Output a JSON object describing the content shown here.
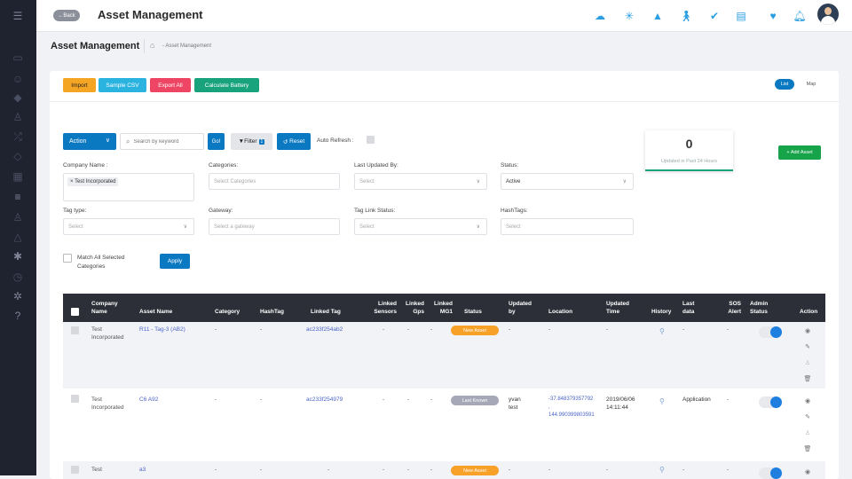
{
  "header": {
    "back_label": "Back",
    "title": "Asset Management",
    "icons": [
      "cloud-rain-icon",
      "network-icon",
      "warning-icon",
      "person-walking-icon",
      "badge-check-icon",
      "document-person-icon",
      "heart-monitor-icon",
      "bell-icon"
    ]
  },
  "page": {
    "title": "Asset Management",
    "breadcrumb": "- Asset Management"
  },
  "toolbar": {
    "import": "Import",
    "sample_csv": "Sample CSV",
    "export_all": "Export All",
    "calculate_battery": "Calculate Battery",
    "view_list": "List",
    "view_map": "Map"
  },
  "colors": {
    "import": "#f5a524",
    "sample_csv": "#2bb3e0",
    "export_all": "#ef4565",
    "calculate_battery": "#19a37c",
    "primary": "#0b78c2",
    "new_asset": "#f7a128",
    "last_known": "#a6a8b8"
  },
  "filters": {
    "action": "Action",
    "search_placeholder": "Search by keyword",
    "go": "Go!",
    "filter": "Filter",
    "filter_count": "1",
    "reset": "Reset",
    "auto_refresh": "Auto Refresh :",
    "company_label": "Company Name :",
    "company_chip": "× Test Incorporated",
    "categories_label": "Categories:",
    "categories_placeholder": "Select Categories",
    "last_updated_label": "Last Updated By:",
    "last_updated_value": "Select",
    "status_label": "Status:",
    "status_value": "Active",
    "tag_type_label": "Tag type:",
    "tag_type_value": "Select",
    "gateway_label": "Gateway:",
    "gateway_placeholder": "Select a gateway",
    "tag_link_label": "Tag Link Status:",
    "tag_link_value": "Select",
    "hashtags_label": "HashTags:",
    "hashtags_placeholder": "Select",
    "match_all_1": "Match All Selected",
    "match_all_2": "Categories",
    "apply": "Apply"
  },
  "stat": {
    "count": "0",
    "label": "Updated in Past 24 Hours"
  },
  "add_asset": "+ Add Asset",
  "table": {
    "headers": {
      "company_1": "Company",
      "company_2": "Name",
      "asset_name": "Asset Name",
      "category": "Category",
      "hashtag": "HashTag",
      "linked_tag": "Linked Tag",
      "linked_sensors_1": "Linked",
      "linked_sensors_2": "Sensors",
      "linked_gps_1": "Linked",
      "linked_gps_2": "Gps",
      "linked_mg1_1": "Linked",
      "linked_mg1_2": "MG1",
      "status": "Status",
      "updated_by_1": "Updated",
      "updated_by_2": "by",
      "location": "Location",
      "updated_time_1": "Updated",
      "updated_time_2": "Time",
      "history": "History",
      "last_data_1": "Last",
      "last_data_2": "data",
      "sos_1": "SOS",
      "sos_2": "Alert",
      "admin_1": "Admin",
      "admin_2": "Status",
      "action": "Action"
    },
    "rows": [
      {
        "company_1": "Test",
        "company_2": "Incorporated",
        "asset_name": "R11 - Tag-3 (AB2)",
        "category": "-",
        "hashtag": "-",
        "linked_tag": "ac233f254ab2",
        "linked_sensors": "-",
        "linked_gps": "-",
        "linked_mg1": "-",
        "status": "New Asset",
        "updated_by": "-",
        "location": "-",
        "updated_time": "-",
        "last_data": "-",
        "sos": "-"
      },
      {
        "company_1": "Test",
        "company_2": "Incorporated",
        "asset_name": "C6 A92",
        "category": "-",
        "hashtag": "-",
        "linked_tag": "ac233f254979",
        "linked_sensors": "-",
        "linked_gps": "-",
        "linked_mg1": "-",
        "status": "Last Known",
        "updated_by_1": "yvan",
        "updated_by_2": "test",
        "location_1": "-37.848379357792",
        "location_2": ",",
        "location_3": "144.990399803591",
        "updated_time_1": "2019/06/06",
        "updated_time_2": "14:11:44",
        "last_data": "Application",
        "sos": "-"
      },
      {
        "company_1": "Test",
        "asset_name": "a3",
        "category": "-",
        "hashtag": "-",
        "linked_tag": "-",
        "linked_sensors": "-",
        "linked_gps": "-",
        "linked_mg1": "-",
        "status": "New Asset",
        "updated_by": "-",
        "location": "-",
        "updated_time": "-",
        "last_data": "-",
        "sos": "-"
      }
    ]
  }
}
